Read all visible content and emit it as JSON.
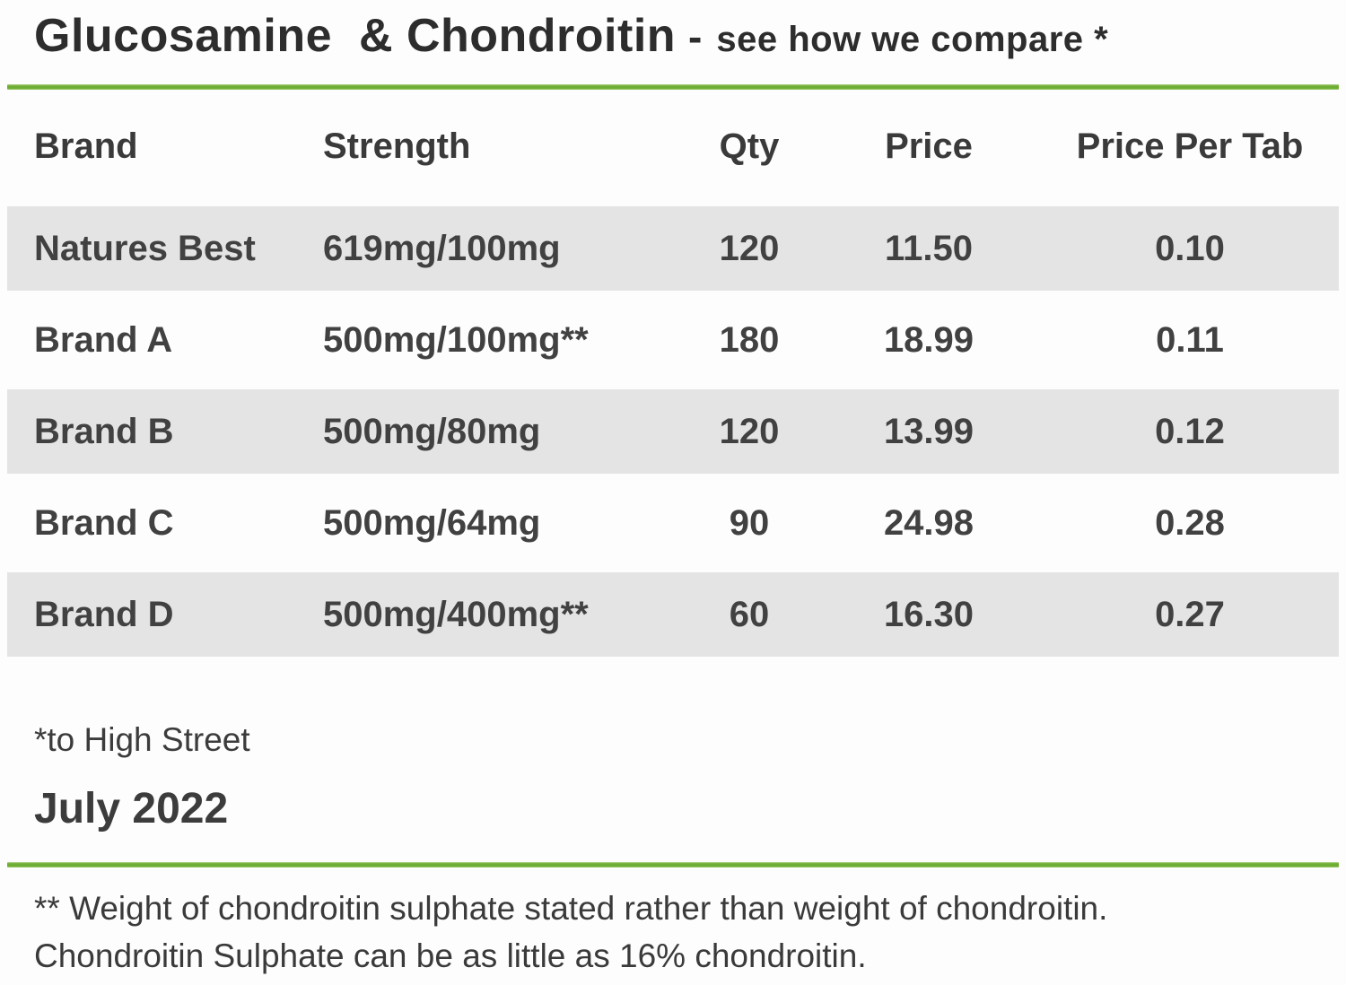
{
  "page": {
    "title_main": "Glucosamine  & Chondroitin",
    "title_dash": "-",
    "title_sub": "see how we compare *",
    "accent_green": "#6fae35",
    "stripe_gray": "#e4e4e5",
    "text_color": "#3e3e3e"
  },
  "table": {
    "headers": {
      "brand": "Brand",
      "strength": "Strength",
      "qty": "Qty",
      "price": "Price",
      "price_per_tab": "Price Per Tab"
    },
    "rows": [
      {
        "brand": "Natures Best",
        "strength": "619mg/100mg",
        "qty": "120",
        "price": "11.50",
        "price_per_tab": "0.10"
      },
      {
        "brand": "Brand A",
        "strength": "500mg/100mg**",
        "qty": "180",
        "price": "18.99",
        "price_per_tab": "0.11"
      },
      {
        "brand": "Brand B",
        "strength": "500mg/80mg",
        "qty": "120",
        "price": "13.99",
        "price_per_tab": "0.12"
      },
      {
        "brand": "Brand C",
        "strength": "500mg/64mg",
        "qty": "90",
        "price": "24.98",
        "price_per_tab": "0.28"
      },
      {
        "brand": "Brand D",
        "strength": "500mg/400mg**",
        "qty": "60",
        "price": "16.30",
        "price_per_tab": "0.27"
      }
    ]
  },
  "footer": {
    "asterisk_note": "*to High Street",
    "date": "July 2022",
    "footnote_line1": "** Weight of chondroitin sulphate stated rather than weight of chondroitin.",
    "footnote_line2": "Chondroitin Sulphate can be as little as 16% chondroitin."
  },
  "chart_data": {
    "type": "table",
    "title": "Glucosamine & Chondroitin - see how we compare *",
    "columns": [
      "Brand",
      "Strength",
      "Qty",
      "Price",
      "Price Per Tab"
    ],
    "rows": [
      [
        "Natures Best",
        "619mg/100mg",
        120,
        11.5,
        0.1
      ],
      [
        "Brand A",
        "500mg/100mg**",
        180,
        18.99,
        0.11
      ],
      [
        "Brand B",
        "500mg/80mg",
        120,
        13.99,
        0.12
      ],
      [
        "Brand C",
        "500mg/64mg",
        90,
        24.98,
        0.28
      ],
      [
        "Brand D",
        "500mg/400mg**",
        60,
        16.3,
        0.27
      ]
    ],
    "notes": [
      "*to High Street",
      "July 2022",
      "** Weight of chondroitin sulphate stated rather than weight of chondroitin.",
      "Chondroitin Sulphate can be as little as 16% chondroitin."
    ],
    "layout": {
      "striped_rows": [
        0,
        2,
        4
      ],
      "stripe_color": "#e4e4e5",
      "divider_color": "#6fae35"
    }
  }
}
